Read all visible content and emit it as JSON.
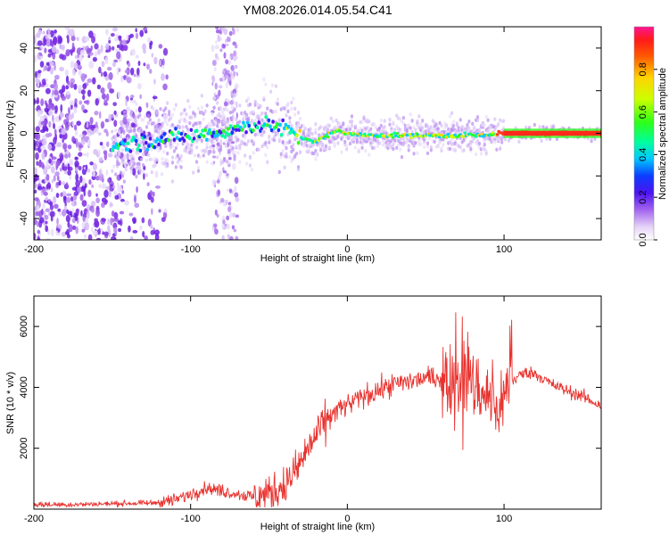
{
  "chart_data": [
    {
      "type": "heatmap",
      "title": "YM08.2026.014.05.54.C41",
      "xlabel": "Height of straight line (km)",
      "ylabel": "Frequency (Hz)",
      "xlim": [
        -200,
        162
      ],
      "ylim": [
        -50,
        50
      ],
      "xticks": [
        -200,
        -100,
        0,
        100
      ],
      "yticks": [
        -40,
        -20,
        0,
        20,
        40
      ],
      "colorbar": {
        "label": "Normalized spectral amplitude",
        "range": [
          0,
          1
        ],
        "ticks": [
          0.0,
          0.2,
          0.4,
          0.6,
          0.8
        ]
      },
      "ridge": {
        "x": [
          -150,
          -140,
          -130,
          -120,
          -110,
          -100,
          -90,
          -80,
          -70,
          -60,
          -50,
          -40,
          -30,
          -25,
          -20,
          -15,
          -10,
          -5,
          0,
          10,
          20,
          40,
          60,
          80,
          90,
          95,
          100,
          120,
          140,
          162
        ],
        "freq": [
          -6,
          -5,
          -4,
          -3,
          -2,
          -1,
          0,
          1,
          2,
          4,
          4,
          2,
          -2,
          -3,
          -4,
          -2,
          0,
          1,
          0,
          -1,
          -1,
          -1,
          -1,
          -1,
          -1,
          0,
          0,
          0,
          0,
          0
        ]
      },
      "noise_region_x": [
        -200,
        -125
      ]
    },
    {
      "type": "line",
      "xlabel": "Height of straight line (km)",
      "ylabel": "SNR (10 * v/v)",
      "xlim": [
        -200,
        162
      ],
      "ylim": [
        0,
        7000
      ],
      "xticks": [
        -200,
        -100,
        0,
        100
      ],
      "yticks": [
        2000,
        4000,
        6000
      ],
      "series": [
        {
          "name": "SNR",
          "color": "#e8332f",
          "x": [
            -200,
            -175,
            -150,
            -125,
            -110,
            -100,
            -90,
            -80,
            -70,
            -60,
            -50,
            -40,
            -35,
            -30,
            -25,
            -20,
            -15,
            -10,
            -5,
            0,
            10,
            20,
            30,
            40,
            50,
            60,
            70,
            75,
            80,
            85,
            90,
            95,
            100,
            105,
            110,
            115,
            120,
            125,
            130,
            140,
            150,
            162
          ],
          "y": [
            150,
            150,
            180,
            200,
            300,
            500,
            700,
            600,
            500,
            400,
            500,
            800,
            1100,
            1500,
            2000,
            2400,
            2800,
            3100,
            3300,
            3400,
            3700,
            3900,
            4100,
            4200,
            4300,
            4350,
            4400,
            4300,
            4100,
            3900,
            3700,
            3200,
            3800,
            4200,
            4400,
            4500,
            4450,
            4300,
            4100,
            3900,
            3700,
            3400
          ]
        }
      ]
    }
  ],
  "colors": {
    "line": "#e8332f",
    "noise": "#7b2ee0",
    "frame": "#000000"
  }
}
